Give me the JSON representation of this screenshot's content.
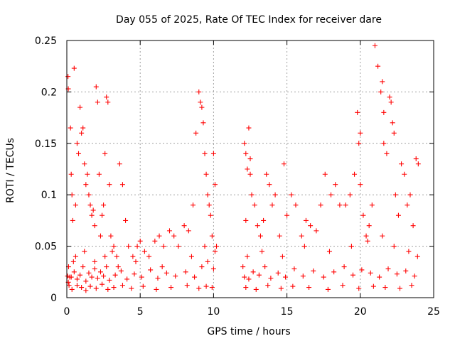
{
  "chart_data": {
    "type": "scatter",
    "title": "Day 055 of 2025, Rate Of TEC Index for receiver dare",
    "xlabel": "GPS time / hours",
    "ylabel": "ROTI / TECUs",
    "xlim": [
      0,
      25
    ],
    "ylim": [
      0,
      0.25
    ],
    "x_ticks": [
      0,
      5,
      10,
      15,
      20,
      25
    ],
    "x_tick_labels": [
      "0",
      "5",
      "10",
      "15",
      "20",
      "25"
    ],
    "y_ticks": [
      0,
      0.05,
      0.1,
      0.15,
      0.2,
      0.25
    ],
    "y_tick_labels": [
      "0",
      "0.05",
      "0.1",
      "0.15",
      "0.2",
      "0.25"
    ],
    "grid": true,
    "marker": "plus",
    "marker_color": "#ff0000",
    "series": [
      {
        "x": [
          0.05,
          0.08,
          0.1,
          0.12,
          0.15,
          0.2,
          0.25,
          0.3,
          0.35,
          0.4,
          0.45,
          0.5,
          0.6,
          0.7,
          0.8,
          0.9,
          1.0,
          1.1,
          1.2,
          1.3,
          1.4,
          1.5,
          1.6,
          1.7,
          1.8,
          1.9,
          2.0,
          2.1,
          2.2,
          2.3,
          2.4,
          2.5,
          2.6,
          2.7,
          2.8,
          2.9,
          3.0,
          3.1,
          3.2,
          3.4,
          3.6,
          3.8,
          4.0,
          4.2,
          4.5,
          4.8,
          5.0,
          5.3,
          5.6,
          6.0,
          6.3,
          6.6,
          7.0,
          7.3,
          7.6,
          8.0,
          8.3,
          8.6,
          8.8,
          9.0,
          9.1,
          9.2,
          9.3,
          9.4,
          9.5,
          9.6,
          9.7,
          9.8,
          9.9,
          10.0,
          10.1,
          10.2,
          0.1,
          0.3,
          0.5,
          0.7,
          0.9,
          1.1,
          1.3,
          1.5,
          1.7,
          1.9,
          2.1,
          2.3,
          2.5,
          2.7,
          2.9,
          3.3,
          3.7,
          4.1,
          4.6,
          5.1,
          5.7,
          6.2,
          6.8,
          7.4,
          8.1,
          8.7,
          9.2,
          9.6,
          10.0,
          0.35,
          0.7,
          1.0,
          1.3,
          1.6,
          2.0,
          2.4,
          2.8,
          3.2,
          3.8,
          4.4,
          5.2,
          6.1,
          7.1,
          8.2,
          9.0,
          9.5,
          9.9,
          0.6,
          1.2,
          1.9,
          2.6,
          3.5,
          4.7,
          6.5,
          8.5,
          9.4,
          10.1,
          12.0,
          12.1,
          12.2,
          12.3,
          12.4,
          12.5,
          12.6,
          12.8,
          13.0,
          13.2,
          13.4,
          13.6,
          13.8,
          14.0,
          14.2,
          14.5,
          14.8,
          15.0,
          15.3,
          15.6,
          16.0,
          16.3,
          16.6,
          17.0,
          17.3,
          17.6,
          18.0,
          18.3,
          18.6,
          19.0,
          19.3,
          19.6,
          19.8,
          20.0,
          20.2,
          20.4,
          20.6,
          20.8,
          21.0,
          21.2,
          21.4,
          21.6,
          21.8,
          22.0,
          22.2,
          22.4,
          22.6,
          22.8,
          23.0,
          23.2,
          23.4,
          23.6,
          23.8,
          23.95,
          12.1,
          12.4,
          12.7,
          13.1,
          13.5,
          13.9,
          14.4,
          14.9,
          15.5,
          16.1,
          16.8,
          17.5,
          18.2,
          18.9,
          19.5,
          20.1,
          20.7,
          21.3,
          21.9,
          22.5,
          23.1,
          23.7,
          12.2,
          12.9,
          13.7,
          14.6,
          15.4,
          16.5,
          17.8,
          18.8,
          19.9,
          20.9,
          21.7,
          22.7,
          23.5,
          12.3,
          13.3,
          14.7,
          16.2,
          17.9,
          19.4,
          20.5,
          21.5,
          22.3,
          23.3,
          23.9,
          21.5,
          21.6,
          22.1,
          22.3,
          20.0,
          19.9,
          12.5,
          12.2
        ],
        "y": [
          0.021,
          0.215,
          0.203,
          0.03,
          0.012,
          0.02,
          0.165,
          0.12,
          0.1,
          0.075,
          0.035,
          0.223,
          0.09,
          0.15,
          0.14,
          0.185,
          0.16,
          0.165,
          0.13,
          0.11,
          0.12,
          0.1,
          0.09,
          0.08,
          0.085,
          0.07,
          0.205,
          0.19,
          0.12,
          0.06,
          0.08,
          0.09,
          0.14,
          0.195,
          0.19,
          0.11,
          0.06,
          0.045,
          0.05,
          0.04,
          0.13,
          0.11,
          0.075,
          0.05,
          0.04,
          0.05,
          0.055,
          0.045,
          0.04,
          0.055,
          0.06,
          0.05,
          0.065,
          0.06,
          0.05,
          0.07,
          0.065,
          0.09,
          0.16,
          0.2,
          0.19,
          0.185,
          0.17,
          0.14,
          0.12,
          0.1,
          0.09,
          0.08,
          0.06,
          0.14,
          0.11,
          0.05,
          0.015,
          0.02,
          0.025,
          0.018,
          0.022,
          0.03,
          0.016,
          0.024,
          0.02,
          0.028,
          0.019,
          0.025,
          0.021,
          0.03,
          0.017,
          0.022,
          0.026,
          0.018,
          0.023,
          0.02,
          0.027,
          0.019,
          0.024,
          0.021,
          0.025,
          0.02,
          0.03,
          0.035,
          0.028,
          0.008,
          0.012,
          0.01,
          0.007,
          0.011,
          0.009,
          0.013,
          0.008,
          0.01,
          0.012,
          0.009,
          0.011,
          0.008,
          0.01,
          0.012,
          0.009,
          0.011,
          0.01,
          0.04,
          0.045,
          0.035,
          0.04,
          0.03,
          0.035,
          0.03,
          0.04,
          0.05,
          0.045,
          0.03,
          0.15,
          0.14,
          0.125,
          0.165,
          0.12,
          0.1,
          0.09,
          0.07,
          0.06,
          0.075,
          0.12,
          0.11,
          0.09,
          0.1,
          0.06,
          0.13,
          0.08,
          0.1,
          0.09,
          0.06,
          0.075,
          0.07,
          0.065,
          0.09,
          0.12,
          0.1,
          0.11,
          0.09,
          0.09,
          0.1,
          0.12,
          0.18,
          0.11,
          0.08,
          0.06,
          0.07,
          0.09,
          0.245,
          0.225,
          0.2,
          0.15,
          0.14,
          0.195,
          0.17,
          0.1,
          0.08,
          0.13,
          0.12,
          0.09,
          0.1,
          0.07,
          0.135,
          0.13,
          0.02,
          0.018,
          0.025,
          0.022,
          0.03,
          0.019,
          0.024,
          0.02,
          0.028,
          0.021,
          0.026,
          0.02,
          0.025,
          0.03,
          0.022,
          0.027,
          0.024,
          0.02,
          0.028,
          0.023,
          0.026,
          0.021,
          0.01,
          0.008,
          0.012,
          0.009,
          0.011,
          0.01,
          0.008,
          0.012,
          0.009,
          0.011,
          0.01,
          0.009,
          0.012,
          0.04,
          0.045,
          0.04,
          0.05,
          0.045,
          0.05,
          0.055,
          0.06,
          0.05,
          0.045,
          0.04,
          0.21,
          0.18,
          0.19,
          0.16,
          0.16,
          0.15,
          0.135,
          0.075
        ]
      }
    ]
  }
}
